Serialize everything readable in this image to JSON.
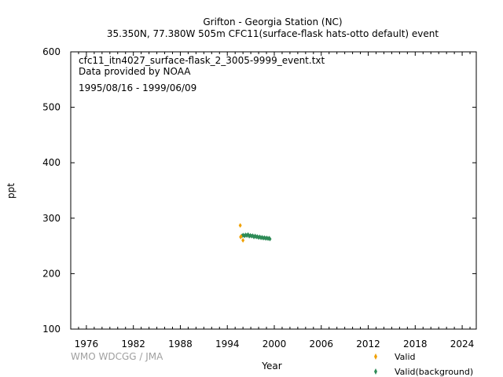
{
  "chart_data": {
    "type": "scatter",
    "title": "Grifton - Georgia Station (NC)",
    "subtitle": "35.350N, 77.380W 505m    CFC11(surface-flask hats-otto default) event",
    "annotations": [
      "cfc11_itn4027_surface-flask_2_3005-9999_event.txt",
      "Data provided by NOAA",
      "1995/08/16 - 1999/06/09"
    ],
    "xlabel": "Year",
    "ylabel": "ppt",
    "xlim": [
      1974,
      2025.8
    ],
    "ylim": [
      100,
      600
    ],
    "x_ticks": [
      1976,
      1982,
      1988,
      1994,
      2000,
      2006,
      2012,
      2018,
      2024
    ],
    "y_ticks": [
      100,
      200,
      300,
      400,
      500,
      600
    ],
    "grid": false,
    "legend_position": "bottom-right",
    "watermark": "WMO WDCGG / JMA",
    "series": [
      {
        "name": "Valid",
        "color": "#f0a000",
        "points": [
          [
            1995.65,
            287.0
          ],
          [
            1995.75,
            267.0
          ],
          [
            1996.0,
            260.0
          ],
          [
            1995.7,
            266.0
          ]
        ]
      },
      {
        "name": "Valid(background)",
        "color": "#2e8b57",
        "points": [
          [
            1995.9,
            268.5
          ],
          [
            1996.05,
            269.5
          ],
          [
            1996.2,
            268.0
          ],
          [
            1996.35,
            270.0
          ],
          [
            1996.5,
            268.5
          ],
          [
            1996.65,
            270.5
          ],
          [
            1996.8,
            267.5
          ],
          [
            1996.95,
            269.0
          ],
          [
            1997.1,
            267.5
          ],
          [
            1997.25,
            268.5
          ],
          [
            1997.4,
            266.0
          ],
          [
            1997.55,
            268.0
          ],
          [
            1997.7,
            266.0
          ],
          [
            1997.85,
            267.0
          ],
          [
            1998.0,
            265.0
          ],
          [
            1998.15,
            266.5
          ],
          [
            1998.3,
            264.5
          ],
          [
            1998.45,
            265.5
          ],
          [
            1998.6,
            264.0
          ],
          [
            1998.75,
            265.0
          ],
          [
            1998.9,
            263.5
          ],
          [
            1999.05,
            264.5
          ],
          [
            1999.2,
            263.0
          ],
          [
            1999.35,
            264.0
          ],
          [
            1999.45,
            262.5
          ]
        ]
      }
    ]
  }
}
